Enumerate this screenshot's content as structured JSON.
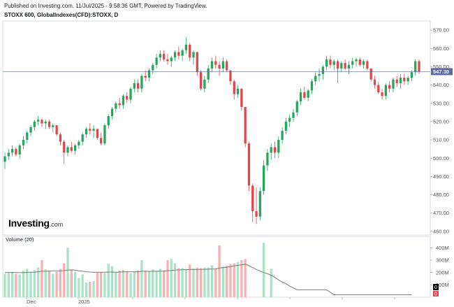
{
  "header": {
    "published": "Published on Investing.com, 11/Jul/2025 - 9:58:36 GMT, Powered by TradingView.",
    "symbol": "STOXX 600, GlobalIndexes(CFD):STOXX, D"
  },
  "logo": {
    "brand": "Investing",
    "domain": ".com"
  },
  "colors": {
    "up": "#26a65b",
    "down": "#e0474c",
    "vol_up": "#a9e3c4",
    "vol_down": "#f5b2b2",
    "line": "#7a7a7a",
    "price_box": "#5b6aa6",
    "axis": "#555555"
  },
  "chart_data": [
    {
      "type": "candlestick",
      "title": "",
      "symbol": "STOXX 600",
      "ylim": [
        458,
        575
      ],
      "y_ticks": [
        "570.00",
        "560.00",
        "550.00",
        "540.00",
        "530.00",
        "520.00",
        "510.00",
        "500.00",
        "490.00",
        "480.00",
        "470.00",
        "460.00"
      ],
      "x_labels": [
        "Dec",
        "2025"
      ],
      "last_price": "547.30",
      "candles": [
        {
          "o": 498,
          "h": 503,
          "l": 494,
          "c": 501
        },
        {
          "o": 501,
          "h": 505,
          "l": 499,
          "c": 503
        },
        {
          "o": 503,
          "h": 507,
          "l": 501,
          "c": 505
        },
        {
          "o": 505,
          "h": 506,
          "l": 501,
          "c": 502
        },
        {
          "o": 502,
          "h": 508,
          "l": 500,
          "c": 507
        },
        {
          "o": 507,
          "h": 512,
          "l": 505,
          "c": 510
        },
        {
          "o": 510,
          "h": 515,
          "l": 508,
          "c": 514
        },
        {
          "o": 514,
          "h": 518,
          "l": 512,
          "c": 517
        },
        {
          "o": 517,
          "h": 521,
          "l": 515,
          "c": 520
        },
        {
          "o": 520,
          "h": 523,
          "l": 518,
          "c": 521
        },
        {
          "o": 521,
          "h": 522,
          "l": 517,
          "c": 519
        },
        {
          "o": 519,
          "h": 521,
          "l": 516,
          "c": 520
        },
        {
          "o": 520,
          "h": 521,
          "l": 516,
          "c": 517
        },
        {
          "o": 517,
          "h": 519,
          "l": 514,
          "c": 518
        },
        {
          "o": 518,
          "h": 518,
          "l": 512,
          "c": 513
        },
        {
          "o": 513,
          "h": 514,
          "l": 507,
          "c": 509
        },
        {
          "o": 509,
          "h": 510,
          "l": 497,
          "c": 503
        },
        {
          "o": 503,
          "h": 507,
          "l": 501,
          "c": 506
        },
        {
          "o": 506,
          "h": 509,
          "l": 503,
          "c": 504
        },
        {
          "o": 504,
          "h": 508,
          "l": 502,
          "c": 507
        },
        {
          "o": 507,
          "h": 510,
          "l": 505,
          "c": 509
        },
        {
          "o": 509,
          "h": 514,
          "l": 507,
          "c": 513
        },
        {
          "o": 513,
          "h": 517,
          "l": 511,
          "c": 516
        },
        {
          "o": 516,
          "h": 519,
          "l": 513,
          "c": 515
        },
        {
          "o": 515,
          "h": 518,
          "l": 511,
          "c": 516
        },
        {
          "o": 516,
          "h": 516,
          "l": 510,
          "c": 511
        },
        {
          "o": 511,
          "h": 514,
          "l": 507,
          "c": 508
        },
        {
          "o": 508,
          "h": 519,
          "l": 507,
          "c": 518
        },
        {
          "o": 518,
          "h": 524,
          "l": 516,
          "c": 523
        },
        {
          "o": 523,
          "h": 528,
          "l": 521,
          "c": 527
        },
        {
          "o": 527,
          "h": 531,
          "l": 525,
          "c": 530
        },
        {
          "o": 530,
          "h": 533,
          "l": 527,
          "c": 529
        },
        {
          "o": 529,
          "h": 535,
          "l": 527,
          "c": 534
        },
        {
          "o": 534,
          "h": 536,
          "l": 530,
          "c": 532
        },
        {
          "o": 532,
          "h": 539,
          "l": 530,
          "c": 538
        },
        {
          "o": 538,
          "h": 543,
          "l": 536,
          "c": 541
        },
        {
          "o": 541,
          "h": 543,
          "l": 536,
          "c": 538
        },
        {
          "o": 538,
          "h": 546,
          "l": 536,
          "c": 545
        },
        {
          "o": 545,
          "h": 548,
          "l": 542,
          "c": 544
        },
        {
          "o": 544,
          "h": 549,
          "l": 542,
          "c": 548
        },
        {
          "o": 548,
          "h": 552,
          "l": 546,
          "c": 551
        },
        {
          "o": 551,
          "h": 557,
          "l": 549,
          "c": 555
        },
        {
          "o": 555,
          "h": 559,
          "l": 553,
          "c": 557
        },
        {
          "o": 557,
          "h": 559,
          "l": 553,
          "c": 554
        },
        {
          "o": 554,
          "h": 557,
          "l": 551,
          "c": 553
        },
        {
          "o": 553,
          "h": 556,
          "l": 550,
          "c": 555
        },
        {
          "o": 555,
          "h": 559,
          "l": 553,
          "c": 558
        },
        {
          "o": 558,
          "h": 561,
          "l": 554,
          "c": 556
        },
        {
          "o": 556,
          "h": 560,
          "l": 553,
          "c": 559
        },
        {
          "o": 559,
          "h": 566,
          "l": 557,
          "c": 562
        },
        {
          "o": 562,
          "h": 563,
          "l": 553,
          "c": 555
        },
        {
          "o": 555,
          "h": 559,
          "l": 551,
          "c": 558
        },
        {
          "o": 558,
          "h": 558,
          "l": 545,
          "c": 547
        },
        {
          "o": 547,
          "h": 548,
          "l": 537,
          "c": 538
        },
        {
          "o": 538,
          "h": 545,
          "l": 536,
          "c": 543
        },
        {
          "o": 543,
          "h": 551,
          "l": 541,
          "c": 549
        },
        {
          "o": 549,
          "h": 555,
          "l": 547,
          "c": 553
        },
        {
          "o": 553,
          "h": 556,
          "l": 549,
          "c": 551
        },
        {
          "o": 551,
          "h": 553,
          "l": 545,
          "c": 549
        },
        {
          "o": 549,
          "h": 555,
          "l": 547,
          "c": 553
        },
        {
          "o": 553,
          "h": 554,
          "l": 547,
          "c": 548
        },
        {
          "o": 548,
          "h": 548,
          "l": 540,
          "c": 542
        },
        {
          "o": 542,
          "h": 543,
          "l": 532,
          "c": 535
        },
        {
          "o": 535,
          "h": 540,
          "l": 533,
          "c": 538
        },
        {
          "o": 538,
          "h": 538,
          "l": 526,
          "c": 528
        },
        {
          "o": 528,
          "h": 528,
          "l": 506,
          "c": 508
        },
        {
          "o": 508,
          "h": 509,
          "l": 482,
          "c": 485
        },
        {
          "o": 485,
          "h": 486,
          "l": 465,
          "c": 471
        },
        {
          "o": 471,
          "h": 484,
          "l": 464,
          "c": 468
        },
        {
          "o": 468,
          "h": 484,
          "l": 466,
          "c": 482
        },
        {
          "o": 482,
          "h": 499,
          "l": 480,
          "c": 496
        },
        {
          "o": 496,
          "h": 505,
          "l": 493,
          "c": 503
        },
        {
          "o": 503,
          "h": 508,
          "l": 499,
          "c": 506
        },
        {
          "o": 506,
          "h": 509,
          "l": 500,
          "c": 503
        },
        {
          "o": 503,
          "h": 512,
          "l": 500,
          "c": 510
        },
        {
          "o": 510,
          "h": 517,
          "l": 508,
          "c": 515
        },
        {
          "o": 515,
          "h": 522,
          "l": 513,
          "c": 520
        },
        {
          "o": 520,
          "h": 524,
          "l": 517,
          "c": 522
        },
        {
          "o": 522,
          "h": 527,
          "l": 520,
          "c": 525
        },
        {
          "o": 525,
          "h": 532,
          "l": 523,
          "c": 531
        },
        {
          "o": 531,
          "h": 538,
          "l": 529,
          "c": 536
        },
        {
          "o": 536,
          "h": 539,
          "l": 532,
          "c": 533
        },
        {
          "o": 533,
          "h": 538,
          "l": 531,
          "c": 537
        },
        {
          "o": 537,
          "h": 543,
          "l": 535,
          "c": 542
        },
        {
          "o": 542,
          "h": 547,
          "l": 540,
          "c": 545
        },
        {
          "o": 545,
          "h": 549,
          "l": 542,
          "c": 546
        },
        {
          "o": 546,
          "h": 551,
          "l": 543,
          "c": 550
        },
        {
          "o": 550,
          "h": 556,
          "l": 548,
          "c": 554
        },
        {
          "o": 554,
          "h": 556,
          "l": 549,
          "c": 551
        },
        {
          "o": 551,
          "h": 554,
          "l": 548,
          "c": 553
        },
        {
          "o": 553,
          "h": 554,
          "l": 541,
          "c": 549
        },
        {
          "o": 549,
          "h": 553,
          "l": 547,
          "c": 552
        },
        {
          "o": 552,
          "h": 554,
          "l": 548,
          "c": 549
        },
        {
          "o": 549,
          "h": 553,
          "l": 546,
          "c": 551
        },
        {
          "o": 551,
          "h": 555,
          "l": 549,
          "c": 553
        },
        {
          "o": 553,
          "h": 555,
          "l": 550,
          "c": 554
        },
        {
          "o": 554,
          "h": 555,
          "l": 550,
          "c": 551
        },
        {
          "o": 551,
          "h": 554,
          "l": 549,
          "c": 553
        },
        {
          "o": 553,
          "h": 554,
          "l": 548,
          "c": 549
        },
        {
          "o": 549,
          "h": 549,
          "l": 542,
          "c": 543
        },
        {
          "o": 543,
          "h": 545,
          "l": 538,
          "c": 540
        },
        {
          "o": 540,
          "h": 542,
          "l": 535,
          "c": 536
        },
        {
          "o": 536,
          "h": 538,
          "l": 532,
          "c": 534
        },
        {
          "o": 534,
          "h": 541,
          "l": 532,
          "c": 540
        },
        {
          "o": 540,
          "h": 542,
          "l": 536,
          "c": 538
        },
        {
          "o": 538,
          "h": 544,
          "l": 536,
          "c": 543
        },
        {
          "o": 543,
          "h": 545,
          "l": 539,
          "c": 541
        },
        {
          "o": 541,
          "h": 546,
          "l": 538,
          "c": 544
        },
        {
          "o": 544,
          "h": 546,
          "l": 540,
          "c": 542
        },
        {
          "o": 542,
          "h": 545,
          "l": 540,
          "c": 544
        },
        {
          "o": 544,
          "h": 548,
          "l": 542,
          "c": 547
        },
        {
          "o": 547,
          "h": 554,
          "l": 545,
          "c": 553
        },
        {
          "o": 553,
          "h": 554,
          "l": 546,
          "c": 547.3
        }
      ]
    },
    {
      "type": "bar",
      "title": "Volume (20)",
      "ylim": [
        0,
        470
      ],
      "y_ticks": [
        "400M",
        "300M",
        "200M",
        "100M"
      ],
      "y_tick_values": [
        400,
        300,
        200,
        100
      ],
      "unit": "M",
      "current_label": "0",
      "values": [
        190,
        195,
        200,
        190,
        185,
        215,
        230,
        205,
        220,
        240,
        300,
        225,
        210,
        190,
        205,
        230,
        275,
        400,
        225,
        205,
        155,
        185,
        120,
        125,
        130,
        200,
        205,
        195,
        270,
        250,
        205,
        215,
        220,
        210,
        195,
        205,
        215,
        300,
        215,
        210,
        225,
        210,
        230,
        215,
        300,
        310,
        275,
        235,
        235,
        230,
        265,
        235,
        240,
        235,
        240,
        240,
        260,
        235,
        420,
        250,
        255,
        270,
        275,
        285,
        300,
        310,
        0,
        0,
        0,
        0,
        0,
        0,
        0,
        0,
        0,
        0,
        0,
        0,
        0,
        0,
        0,
        0,
        0,
        0,
        0,
        0,
        0,
        0,
        0,
        0,
        0,
        0,
        0,
        0,
        0,
        0,
        0,
        0,
        0,
        0,
        0,
        0,
        0,
        0,
        0,
        0,
        0,
        0,
        0,
        0
      ],
      "volume_visible_extra": [
        {
          "index": 70,
          "value": 440
        },
        {
          "index": 72,
          "value": 230
        }
      ],
      "ma": [
        200,
        200,
        201,
        200,
        199,
        199,
        201,
        202,
        203,
        206,
        210,
        211,
        212,
        213,
        213,
        213,
        215,
        220,
        221,
        219,
        214,
        211,
        206,
        204,
        203,
        203,
        203,
        203,
        204,
        204,
        203,
        204,
        205,
        206,
        206,
        206,
        206,
        210,
        210,
        209,
        210,
        210,
        211,
        212,
        215,
        217,
        220,
        221,
        222,
        223,
        224,
        224,
        225,
        226,
        226,
        227,
        228,
        229,
        236,
        239,
        243,
        248,
        253,
        258,
        263,
        268,
        255,
        240,
        225,
        212,
        200,
        190,
        178,
        160,
        140,
        123,
        110,
        90,
        75,
        60,
        60,
        60,
        60,
        60,
        60,
        60,
        60,
        60,
        40,
        20,
        20,
        20,
        20,
        20,
        20,
        20,
        20,
        20,
        20,
        20,
        20,
        20,
        20,
        20,
        20,
        20,
        20,
        20,
        20,
        20,
        20
      ]
    }
  ]
}
